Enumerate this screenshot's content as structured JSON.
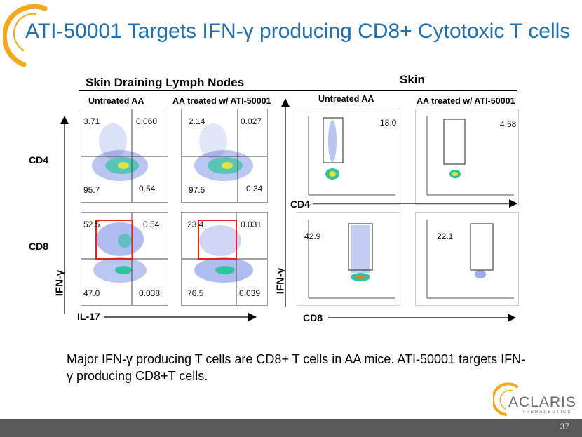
{
  "slide": {
    "title": "ATI-50001 Targets IFN-γ producing CD8+ Cytotoxic T cells",
    "page_number": "37",
    "caption": "Major IFN-γ producing T cells are CD8+ T cells in AA mice. ATI-50001 targets IFN-γ producing CD8+T cells.",
    "logo_text": "ACLARIS",
    "logo_subtext": "THERAPEUTICS",
    "accent_color": "#f5a81c",
    "title_color": "#1f6fb5"
  },
  "lymph": {
    "header": "Skin Draining Lymph Nodes",
    "col1": "Untreated AA",
    "col2": "AA treated w/ ATI-50001",
    "row_cd4": "CD4",
    "row_cd8": "CD8",
    "y_axis": "IFN-γ",
    "x_axis": "IL-17",
    "plots": {
      "cd4_untreated": {
        "ul": "3.71",
        "ur": "0.060",
        "ll": "95.7",
        "lr": "0.54"
      },
      "cd4_treated": {
        "ul": "2.14",
        "ur": "0.027",
        "ll": "97.5",
        "lr": "0.34"
      },
      "cd8_untreated": {
        "ul": "52.5",
        "ur": "0.54",
        "ll": "47.0",
        "lr": "0.038"
      },
      "cd8_treated": {
        "ul": "23.4",
        "ur": "0.031",
        "ll": "76.5",
        "lr": "0.039"
      }
    }
  },
  "skin": {
    "header": "Skin",
    "col1": "Untreated AA",
    "col2": "AA treated w/ ATI-50001",
    "y_axis": "IFN-γ",
    "x_cd4": "CD4",
    "x_cd8": "CD8",
    "plots": {
      "cd4_untreated": "18.0",
      "cd4_treated": "4.58",
      "cd8_untreated": "42.9",
      "cd8_treated": "22.1"
    }
  }
}
